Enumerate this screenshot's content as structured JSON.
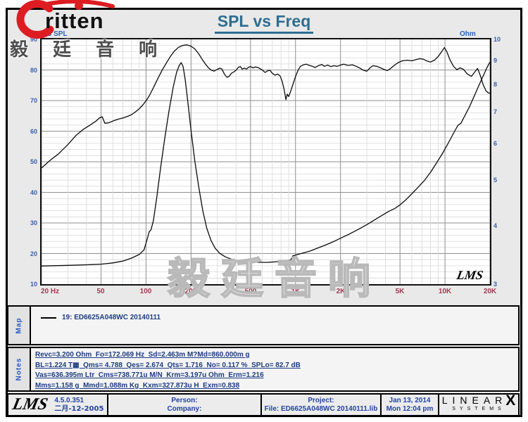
{
  "brand": {
    "logo_text": "ritten",
    "cn_header": "毅 廷 音 响"
  },
  "title": "SPL vs Freq",
  "watermark": "毅廷音响",
  "chart": {
    "left_unit": "dB SPL",
    "right_unit": "Ohm",
    "lms_mark": "LMS",
    "x_ticks": [
      {
        "f": 20,
        "label": "20 Hz"
      },
      {
        "f": 50,
        "label": "50"
      },
      {
        "f": 100,
        "label": "100"
      },
      {
        "f": 200,
        "label": "200"
      },
      {
        "f": 500,
        "label": "500"
      },
      {
        "f": 1000,
        "label": "1K"
      },
      {
        "f": 2000,
        "label": "2K"
      },
      {
        "f": 5000,
        "label": "5K"
      },
      {
        "f": 10000,
        "label": "10K"
      },
      {
        "f": 20000,
        "label": "20K"
      }
    ],
    "y_left_ticks": [
      90,
      80,
      70,
      60,
      50,
      40,
      30,
      20,
      10
    ],
    "y_right_ticks": [
      10,
      9,
      8,
      7,
      6,
      5,
      4,
      3
    ]
  },
  "chart_data": {
    "type": "line",
    "title": "SPL vs Freq",
    "x_axis": {
      "unit": "Hz",
      "scale": "log",
      "min": 20,
      "max": 20000
    },
    "y_left_axis": {
      "label": "dB SPL",
      "scale": "linear",
      "min": 10,
      "max": 90
    },
    "y_right_axis": {
      "label": "Ohm",
      "scale": "log",
      "min": 3,
      "max": 10
    },
    "grid": true,
    "series": [
      {
        "name": "19: ED6625A048WC 20140111 (SPL)",
        "axis": "left",
        "unit": "dB",
        "color": "#0b0b0b",
        "points": [
          [
            20,
            48
          ],
          [
            23,
            50.6
          ],
          [
            26,
            52.6
          ],
          [
            30,
            55.6
          ],
          [
            34,
            58.6
          ],
          [
            38,
            60.6
          ],
          [
            42,
            61.9
          ],
          [
            46,
            63.2
          ],
          [
            49,
            64.4
          ],
          [
            51,
            64.7
          ],
          [
            53,
            62.6
          ],
          [
            56,
            62.7
          ],
          [
            60,
            63.3
          ],
          [
            65,
            63.9
          ],
          [
            70,
            64.3
          ],
          [
            75,
            64.8
          ],
          [
            80,
            65.4
          ],
          [
            85,
            66.3
          ],
          [
            90,
            67.3
          ],
          [
            95,
            68.5
          ],
          [
            100,
            69.9
          ],
          [
            105,
            71.5
          ],
          [
            112,
            74.2
          ],
          [
            120,
            77.2
          ],
          [
            128,
            79.9
          ],
          [
            136,
            82.1
          ],
          [
            145,
            84.3
          ],
          [
            155,
            86.2
          ],
          [
            165,
            87.4
          ],
          [
            175,
            88.0
          ],
          [
            188,
            88.2
          ],
          [
            200,
            87.8
          ],
          [
            212,
            86.9
          ],
          [
            225,
            85.3
          ],
          [
            238,
            83.4
          ],
          [
            250,
            81.9
          ],
          [
            262,
            80.7
          ],
          [
            272,
            80.0
          ],
          [
            285,
            79.6
          ],
          [
            300,
            80.2
          ],
          [
            312,
            80.6
          ],
          [
            322,
            80.3
          ],
          [
            335,
            78.6
          ],
          [
            348,
            77.6
          ],
          [
            360,
            77.9
          ],
          [
            372,
            78.9
          ],
          [
            385,
            79.3
          ],
          [
            400,
            79.9
          ],
          [
            415,
            80.9
          ],
          [
            428,
            81.1
          ],
          [
            440,
            80.3
          ],
          [
            455,
            80.6
          ],
          [
            470,
            80.3
          ],
          [
            485,
            80.9
          ],
          [
            500,
            81.1
          ],
          [
            520,
            80.7
          ],
          [
            540,
            81.0
          ],
          [
            560,
            80.8
          ],
          [
            580,
            80.4
          ],
          [
            600,
            80.0
          ],
          [
            625,
            79.2
          ],
          [
            650,
            79.7
          ],
          [
            675,
            79.9
          ],
          [
            700,
            78.9
          ],
          [
            730,
            78.3
          ],
          [
            760,
            78.7
          ],
          [
            790,
            78.0
          ],
          [
            815,
            76.2
          ],
          [
            840,
            73.5
          ],
          [
            862,
            70.3
          ],
          [
            880,
            72.1
          ],
          [
            900,
            71.3
          ],
          [
            925,
            72.8
          ],
          [
            955,
            74.9
          ],
          [
            1000,
            77.8
          ],
          [
            1040,
            79.9
          ],
          [
            1080,
            81.2
          ],
          [
            1130,
            81.7
          ],
          [
            1180,
            81.9
          ],
          [
            1240,
            81.5
          ],
          [
            1300,
            81.2
          ],
          [
            1350,
            80.8
          ],
          [
            1420,
            81.4
          ],
          [
            1500,
            81.8
          ],
          [
            1560,
            81.2
          ],
          [
            1640,
            81.6
          ],
          [
            1720,
            81.1
          ],
          [
            1800,
            81.4
          ],
          [
            1900,
            81.2
          ],
          [
            2000,
            81.6
          ],
          [
            2100,
            81.9
          ],
          [
            2250,
            81.5
          ],
          [
            2400,
            81.7
          ],
          [
            2550,
            81.2
          ],
          [
            2700,
            80.6
          ],
          [
            2850,
            79.9
          ],
          [
            3000,
            79.6
          ],
          [
            3150,
            80.7
          ],
          [
            3300,
            81.4
          ],
          [
            3500,
            81.2
          ],
          [
            3700,
            80.7
          ],
          [
            3900,
            80.2
          ],
          [
            4100,
            79.8
          ],
          [
            4300,
            80.4
          ],
          [
            4600,
            81.6
          ],
          [
            4900,
            82.5
          ],
          [
            5200,
            83.0
          ],
          [
            5600,
            83.2
          ],
          [
            6000,
            83.0
          ],
          [
            6400,
            83.4
          ],
          [
            6800,
            83.7
          ],
          [
            7200,
            83.5
          ],
          [
            7600,
            82.9
          ],
          [
            8000,
            82.6
          ],
          [
            8500,
            83.2
          ],
          [
            9000,
            84.4
          ],
          [
            9500,
            86.0
          ],
          [
            9900,
            87.3
          ],
          [
            10300,
            85.9
          ],
          [
            10800,
            83.3
          ],
          [
            11400,
            81.2
          ],
          [
            12000,
            80.1
          ],
          [
            12600,
            80.7
          ],
          [
            13300,
            80.2
          ],
          [
            14100,
            78.7
          ],
          [
            15000,
            77.9
          ],
          [
            15800,
            79.3
          ],
          [
            16500,
            80.5
          ],
          [
            17200,
            78.3
          ],
          [
            18000,
            75.2
          ],
          [
            18800,
            73.2
          ],
          [
            19500,
            72.5
          ],
          [
            20000,
            72.4
          ]
        ]
      },
      {
        "name": "19: ED6625A048WC 20140111 (Impedance)",
        "axis": "right",
        "unit": "Ohm",
        "color": "#0b0b0b",
        "points": [
          [
            20,
            3.28
          ],
          [
            30,
            3.29
          ],
          [
            40,
            3.3
          ],
          [
            50,
            3.31
          ],
          [
            60,
            3.33
          ],
          [
            70,
            3.36
          ],
          [
            80,
            3.41
          ],
          [
            90,
            3.47
          ],
          [
            97,
            3.55
          ],
          [
            102,
            3.75
          ],
          [
            105,
            3.88
          ],
          [
            108,
            3.92
          ],
          [
            112,
            4.1
          ],
          [
            118,
            4.6
          ],
          [
            125,
            5.3
          ],
          [
            133,
            6.1
          ],
          [
            142,
            7.0
          ],
          [
            152,
            7.9
          ],
          [
            160,
            8.5
          ],
          [
            167,
            8.8
          ],
          [
            172,
            8.92
          ],
          [
            177,
            8.75
          ],
          [
            183,
            8.2
          ],
          [
            190,
            7.4
          ],
          [
            200,
            6.4
          ],
          [
            212,
            5.5
          ],
          [
            225,
            4.85
          ],
          [
            240,
            4.3
          ],
          [
            255,
            3.95
          ],
          [
            272,
            3.72
          ],
          [
            290,
            3.58
          ],
          [
            312,
            3.49
          ],
          [
            340,
            3.43
          ],
          [
            375,
            3.39
          ],
          [
            420,
            3.36
          ],
          [
            480,
            3.35
          ],
          [
            560,
            3.34
          ],
          [
            650,
            3.34
          ],
          [
            750,
            3.35
          ],
          [
            850,
            3.36
          ],
          [
            930,
            3.38
          ],
          [
            960,
            3.45
          ],
          [
            1000,
            3.46
          ],
          [
            1100,
            3.49
          ],
          [
            1250,
            3.53
          ],
          [
            1400,
            3.58
          ],
          [
            1600,
            3.64
          ],
          [
            1800,
            3.7
          ],
          [
            2000,
            3.76
          ],
          [
            2300,
            3.84
          ],
          [
            2600,
            3.92
          ],
          [
            3000,
            4.02
          ],
          [
            3400,
            4.12
          ],
          [
            3800,
            4.21
          ],
          [
            4200,
            4.29
          ],
          [
            4600,
            4.35
          ],
          [
            5000,
            4.43
          ],
          [
            5500,
            4.55
          ],
          [
            6000,
            4.68
          ],
          [
            6600,
            4.83
          ],
          [
            7300,
            5.0
          ],
          [
            8000,
            5.2
          ],
          [
            8800,
            5.45
          ],
          [
            9600,
            5.7
          ],
          [
            10500,
            6.0
          ],
          [
            11400,
            6.3
          ],
          [
            12200,
            6.55
          ],
          [
            12800,
            6.62
          ],
          [
            13500,
            6.85
          ],
          [
            14500,
            7.15
          ],
          [
            15500,
            7.5
          ],
          [
            16800,
            7.95
          ],
          [
            18000,
            8.35
          ],
          [
            19000,
            8.68
          ],
          [
            20000,
            8.95
          ]
        ]
      }
    ]
  },
  "map": {
    "label": "Map",
    "legend": "19: ED6625A048WC   20140111"
  },
  "notes": {
    "label": "Notes",
    "lines": [
      "Revc=3.200 Ohm  Fo=172.069 Hz  Sd=2.463m M?Md=860.000m g",
      "BL=1.224 T▦  Qms= 4.788  Qes= 2.674  Qts= 1.716  No= 0.117 %  SPLo= 82.7 dB",
      "Vas=636.395m Ltr  Cms=738.771u M/N  Krm=3.197u Ohm  Erm=1.216",
      "Mms=1.158 g  Mmd=1.088m Kg  Kxm=327.873u H  Exm=0.838"
    ]
  },
  "footer": {
    "lms": "LMS",
    "version": "4.5.0.351",
    "version_date": "二月-12-2005",
    "person_label": "Person:",
    "company_label": "Company:",
    "project_label": "Project:",
    "file": "File: ED6625A048WC  20140111.lib",
    "date": "Jan 13, 2014",
    "time": "Mon 12:04 pm",
    "linearx_letters": "LINEAR",
    "linearx_x": "X",
    "linearx_systems": "SYSTEMS"
  }
}
